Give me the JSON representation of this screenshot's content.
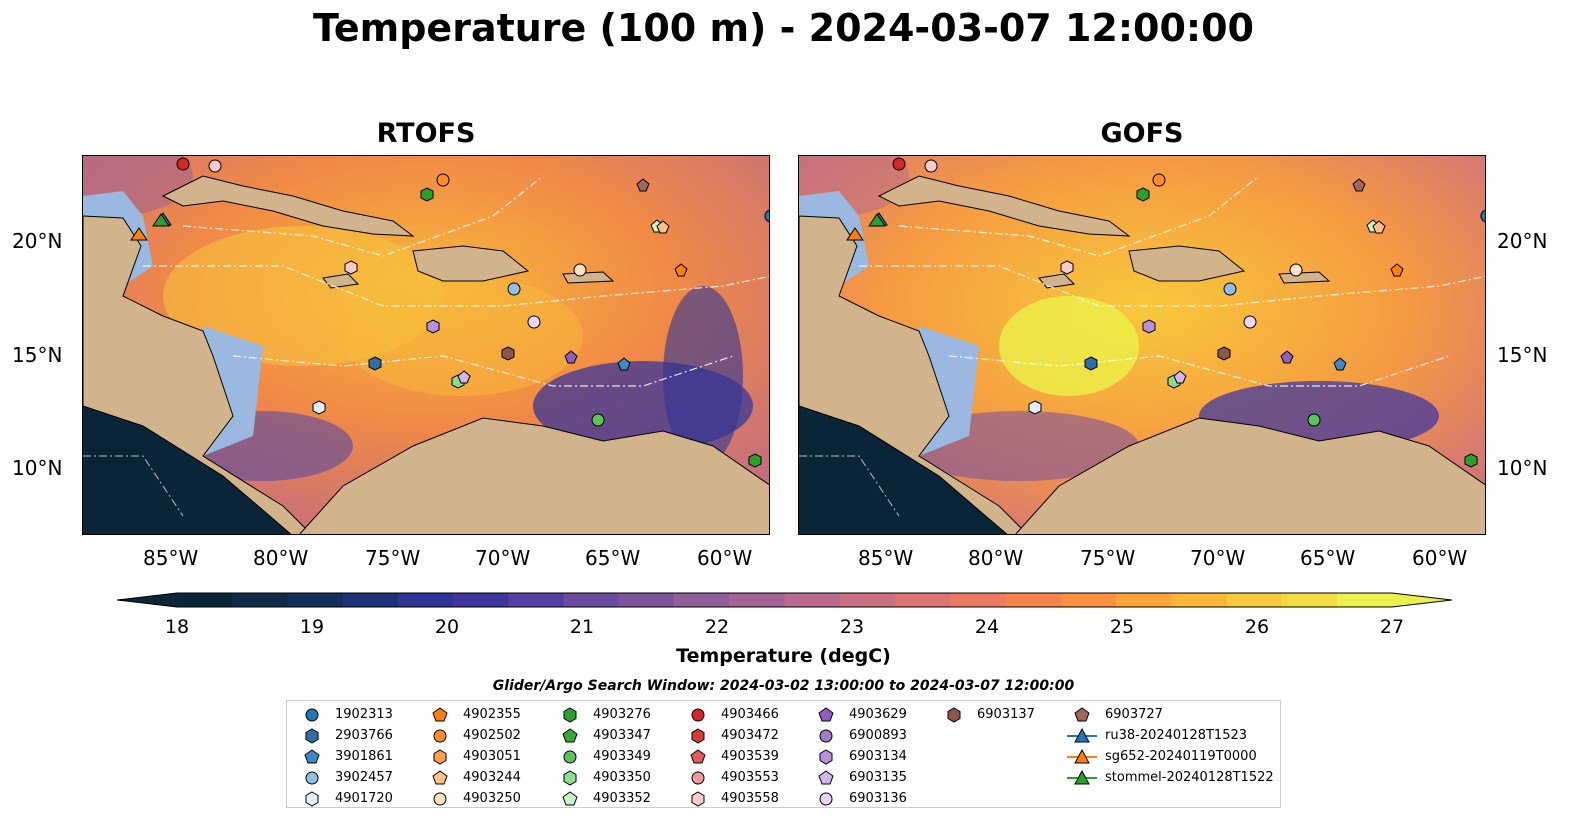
{
  "title": "Temperature (100 m) - 2024-03-07 12:00:00",
  "panels": [
    {
      "title": "RTOFS"
    },
    {
      "title": "GOFS"
    }
  ],
  "axes": {
    "lon_ticks": [
      "85°W",
      "80°W",
      "75°W",
      "70°W",
      "65°W",
      "60°W"
    ],
    "lat_ticks": [
      "20°N",
      "15°N",
      "10°N"
    ]
  },
  "colorbar": {
    "label": "Temperature (degC)",
    "ticks": [
      "18",
      "19",
      "20",
      "21",
      "22",
      "23",
      "24",
      "25",
      "26",
      "27"
    ],
    "min": 18,
    "max": 27,
    "colors": [
      "#0b2538",
      "#0f2a45",
      "#152f5c",
      "#1e3278",
      "#2f3594",
      "#40389f",
      "#5440a0",
      "#6a4b9e",
      "#7d549b",
      "#905e98",
      "#a46394",
      "#b8698c",
      "#cb6f82",
      "#dd7474",
      "#eb7a62",
      "#f5834f",
      "#fa9140",
      "#fca33a",
      "#fbb638",
      "#f8c93a",
      "#f2dc40",
      "#ecf04a"
    ]
  },
  "search_window": "Glider/Argo Search Window: 2024-03-02 13:00:00 to 2024-03-07 12:00:00",
  "legend": [
    {
      "label": "1902313",
      "shape": "circle",
      "color": "#1f77b4"
    },
    {
      "label": "2903766",
      "shape": "hexagon",
      "color": "#2f6fa8"
    },
    {
      "label": "3901861",
      "shape": "pentagon",
      "color": "#3d8ac8"
    },
    {
      "label": "3902457",
      "shape": "circle",
      "color": "#8fbfe6"
    },
    {
      "label": "4901720",
      "shape": "hexagon",
      "color": "#deeefa"
    },
    {
      "label": "4902355",
      "shape": "pentagon",
      "color": "#ff7f0e"
    },
    {
      "label": "4902502",
      "shape": "circle",
      "color": "#ff8c2a"
    },
    {
      "label": "4903051",
      "shape": "hexagon",
      "color": "#ffa04a"
    },
    {
      "label": "4903244",
      "shape": "pentagon",
      "color": "#ffc08a"
    },
    {
      "label": "4903250",
      "shape": "circle",
      "color": "#ffe2c6"
    },
    {
      "label": "4903276",
      "shape": "hexagon",
      "color": "#2ca02c"
    },
    {
      "label": "4903347",
      "shape": "pentagon",
      "color": "#36a836"
    },
    {
      "label": "4903349",
      "shape": "circle",
      "color": "#5cc35c"
    },
    {
      "label": "4903350",
      "shape": "hexagon",
      "color": "#8fdc8f"
    },
    {
      "label": "4903352",
      "shape": "pentagon",
      "color": "#c8f5c8"
    },
    {
      "label": "4903466",
      "shape": "circle",
      "color": "#d62728"
    },
    {
      "label": "4903472",
      "shape": "hexagon",
      "color": "#d83a3a"
    },
    {
      "label": "4903539",
      "shape": "pentagon",
      "color": "#e35b5b"
    },
    {
      "label": "4903553",
      "shape": "circle",
      "color": "#f09a9a"
    },
    {
      "label": "4903558",
      "shape": "hexagon",
      "color": "#f8cccc"
    },
    {
      "label": "4903629",
      "shape": "pentagon",
      "color": "#8e5ec5"
    },
    {
      "label": "6900893",
      "shape": "circle",
      "color": "#a27ccc"
    },
    {
      "label": "6903134",
      "shape": "hexagon",
      "color": "#b891dc"
    },
    {
      "label": "6903135",
      "shape": "pentagon",
      "color": "#d3b6ee"
    },
    {
      "label": "6903136",
      "shape": "circle",
      "color": "#ecd6fb"
    },
    {
      "label": "6903137",
      "shape": "hexagon",
      "color": "#8c564b"
    },
    {
      "label": "6903727",
      "shape": "pentagon",
      "color": "#a0675b"
    },
    {
      "label": "ru38-20240128T1523",
      "shape": "triangle",
      "color": "#1f77b4"
    },
    {
      "label": "sg652-20240119T0000",
      "shape": "triangle",
      "color": "#ff7f0e"
    },
    {
      "label": "stommel-20240128T1522",
      "shape": "triangle",
      "color": "#2ca02c"
    }
  ]
}
